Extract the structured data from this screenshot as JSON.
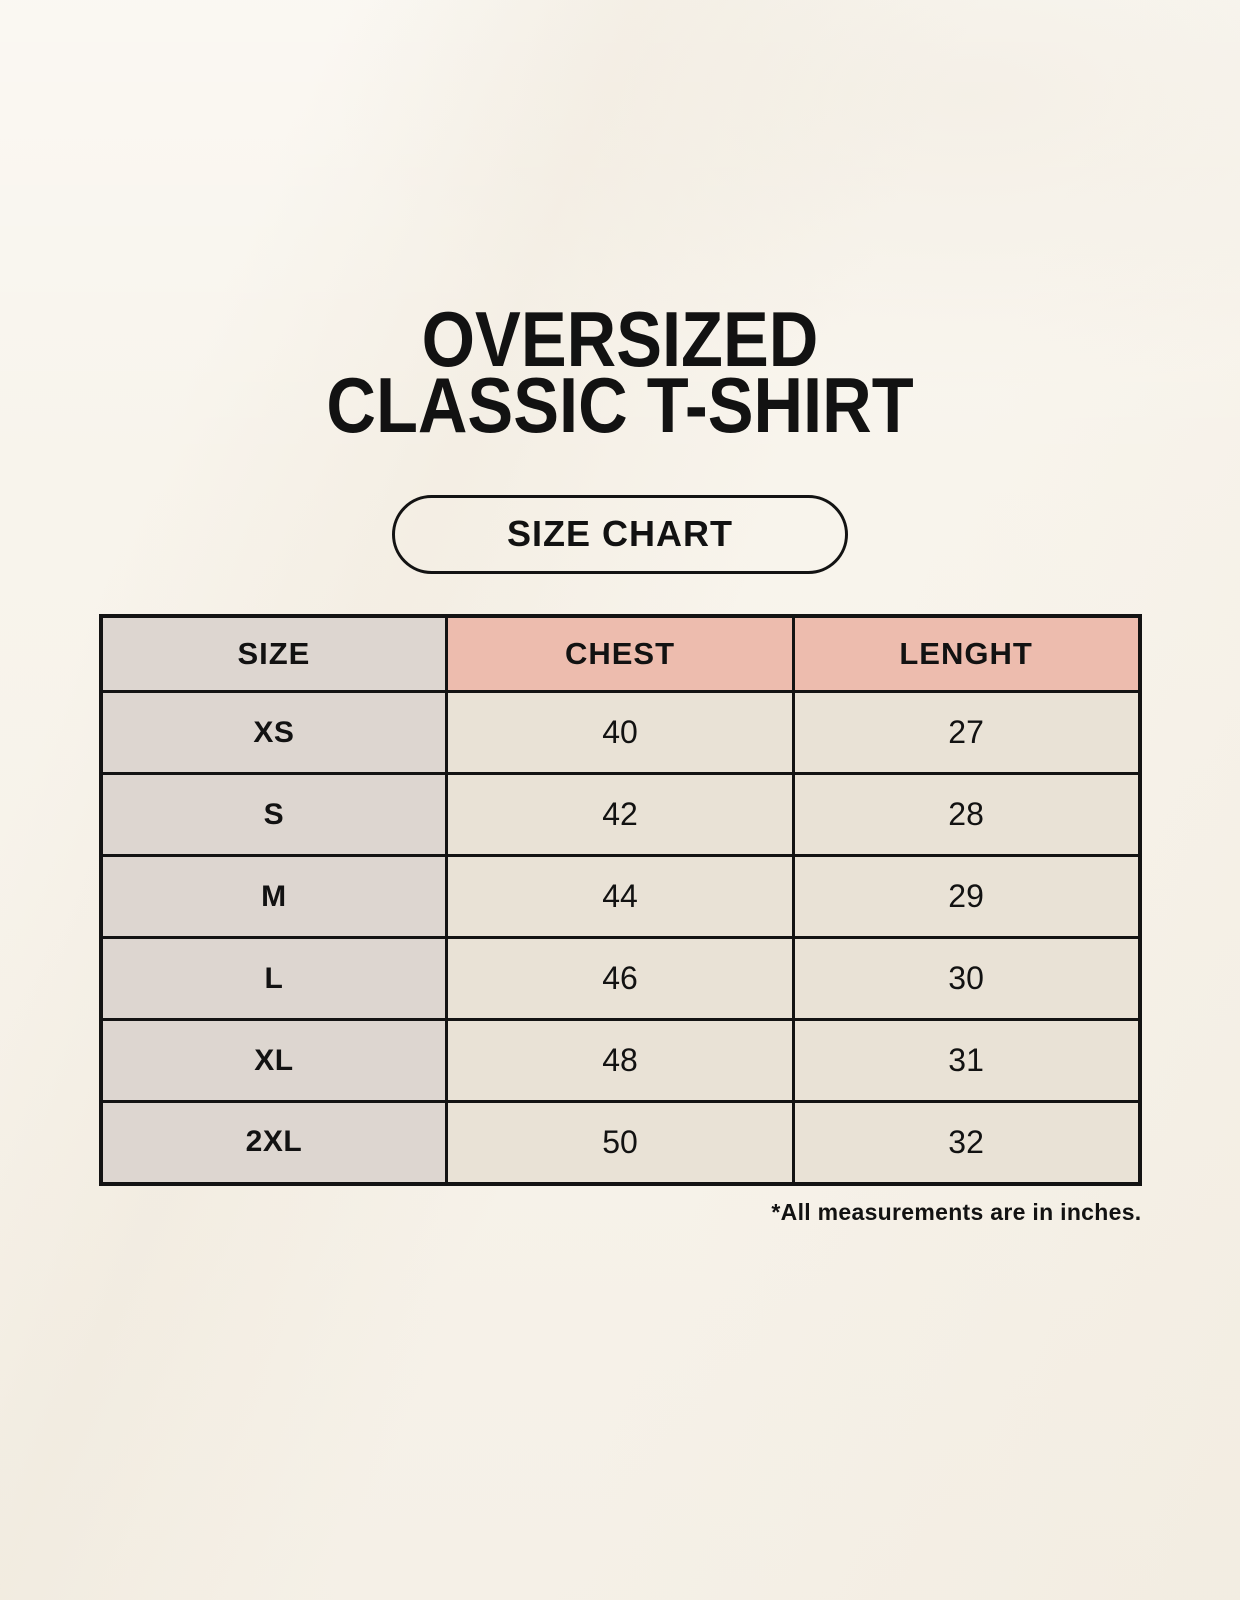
{
  "header": {
    "title_line1": "OVERSIZED",
    "title_line2": "CLASSIC T-SHIRT",
    "badge_label": "SIZE CHART"
  },
  "footnote": "*All measurements are in inches.",
  "colors": {
    "background": "#f8f4ec",
    "size_column": "#ddd6d0",
    "header_accent": "#edbcae",
    "data_cell": "#e9e2d6",
    "border": "#131313",
    "text": "#121212"
  },
  "chart_data": {
    "type": "table",
    "columns": [
      "SIZE",
      "CHEST",
      "LENGHT"
    ],
    "rows": [
      [
        "XS",
        "40",
        "27"
      ],
      [
        "S",
        "42",
        "28"
      ],
      [
        "M",
        "44",
        "29"
      ],
      [
        "L",
        "46",
        "30"
      ],
      [
        "XL",
        "48",
        "31"
      ],
      [
        "2XL",
        "50",
        "32"
      ]
    ],
    "units": "inches",
    "note": "*All measurements are in inches.",
    "layout": "header row with gray SIZE cell and salmon measurement cells; body rows gray size labels, cream values"
  }
}
